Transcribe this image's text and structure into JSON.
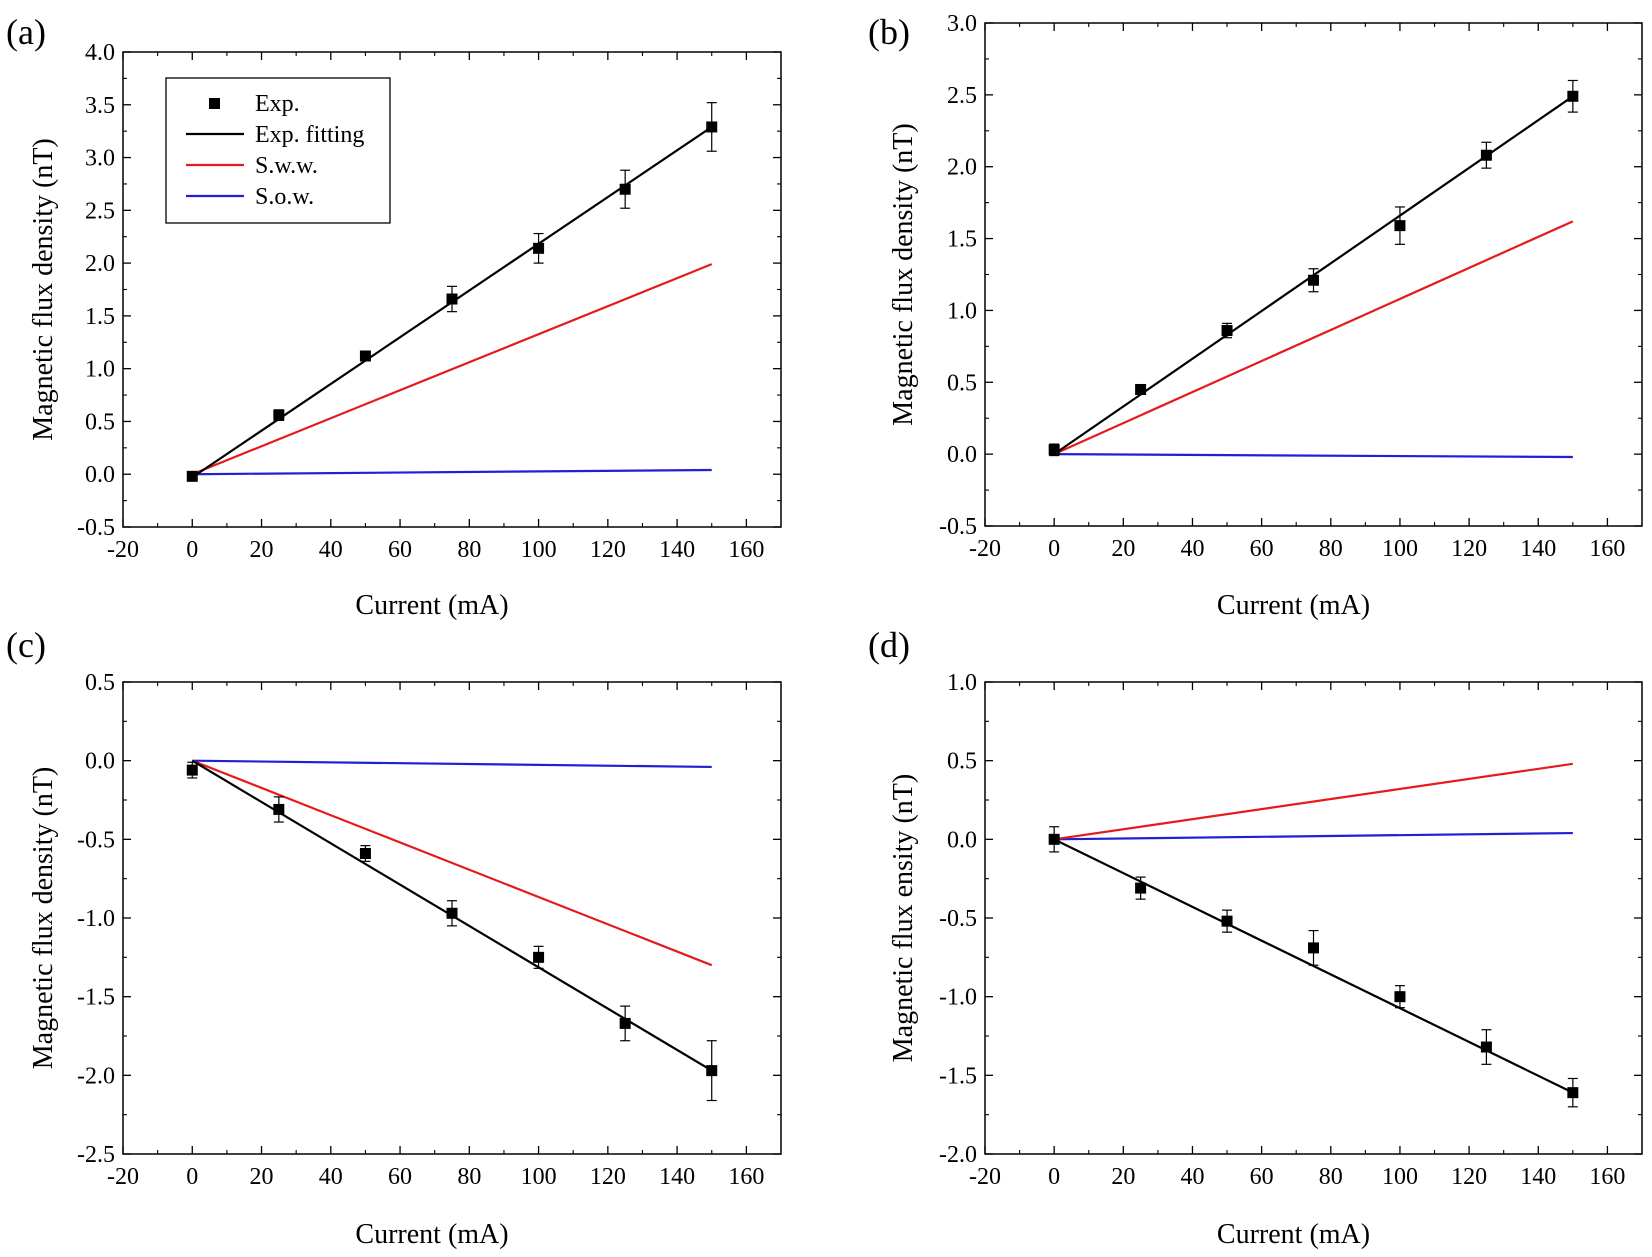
{
  "legend": {
    "entries": [
      {
        "label": "Exp.",
        "kind": "marker",
        "color": "#000000"
      },
      {
        "label": "Exp. fitting",
        "kind": "line",
        "color": "#000000"
      },
      {
        "label": "S.w.w.",
        "kind": "line",
        "color": "#e41a1c"
      },
      {
        "label": "S.o.w.",
        "kind": "line",
        "color": "#1f1fd6"
      }
    ]
  },
  "colors": {
    "exp": "#000000",
    "fit": "#000000",
    "sww": "#e41a1c",
    "sow": "#1f1fd6"
  },
  "chart_data": [
    {
      "panel": "(a)",
      "type": "scatter",
      "xlabel": "Current (mA)",
      "ylabel": "Magnetic flux density (nT)",
      "xlim": [
        -20,
        170
      ],
      "ylim": [
        -0.5,
        4.0
      ],
      "xticks": [
        -20,
        0,
        20,
        40,
        60,
        80,
        100,
        120,
        140,
        160
      ],
      "yticks": [
        "-0.5",
        "0.0",
        "0.5",
        "1.0",
        "1.5",
        "2.0",
        "2.5",
        "3.0",
        "3.5",
        "4.0"
      ],
      "legend_position": "top-left",
      "x": [
        0,
        25,
        50,
        75,
        100,
        125,
        150
      ],
      "exp": [
        -0.02,
        0.56,
        1.12,
        1.66,
        2.14,
        2.7,
        3.29
      ],
      "err": [
        0.03,
        0.05,
        0.03,
        0.12,
        0.14,
        0.18,
        0.23
      ],
      "fit": [
        [
          0,
          -0.03
        ],
        [
          150,
          3.29
        ]
      ],
      "sww": [
        [
          0,
          0.0
        ],
        [
          150,
          1.99
        ]
      ],
      "sow": [
        [
          0,
          0.0
        ],
        [
          150,
          0.04
        ]
      ]
    },
    {
      "panel": "(b)",
      "type": "scatter",
      "xlabel": "Current (mA)",
      "ylabel": "Magnetic flux density (nT)",
      "xlim": [
        -20,
        170
      ],
      "ylim": [
        -0.5,
        3.0
      ],
      "xticks": [
        -20,
        0,
        20,
        40,
        60,
        80,
        100,
        120,
        140,
        160
      ],
      "yticks": [
        "-0.5",
        "0.0",
        "0.5",
        "1.0",
        "1.5",
        "2.0",
        "2.5",
        "3.0"
      ],
      "x": [
        0,
        25,
        50,
        75,
        100,
        125,
        150
      ],
      "exp": [
        0.03,
        0.45,
        0.86,
        1.21,
        1.59,
        2.08,
        2.49
      ],
      "err": [
        0.04,
        0.02,
        0.05,
        0.08,
        0.13,
        0.09,
        0.11
      ],
      "fit": [
        [
          0,
          0.0
        ],
        [
          150,
          2.49
        ]
      ],
      "sww": [
        [
          0,
          0.0
        ],
        [
          150,
          1.62
        ]
      ],
      "sow": [
        [
          0,
          0.0
        ],
        [
          150,
          -0.02
        ]
      ]
    },
    {
      "panel": "(c)",
      "type": "scatter",
      "xlabel": "Current (mA)",
      "ylabel": "Magnetic flux density (nT)",
      "xlim": [
        -20,
        170
      ],
      "ylim": [
        -2.5,
        0.5
      ],
      "xticks": [
        -20,
        0,
        20,
        40,
        60,
        80,
        100,
        120,
        140,
        160
      ],
      "yticks": [
        "-2.5",
        "-2.0",
        "-1.5",
        "-1.0",
        "-0.5",
        "0.0",
        "0.5"
      ],
      "x": [
        0,
        25,
        50,
        75,
        100,
        125,
        150
      ],
      "exp": [
        -0.06,
        -0.31,
        -0.59,
        -0.97,
        -1.25,
        -1.67,
        -1.97
      ],
      "err": [
        0.05,
        0.08,
        0.05,
        0.08,
        0.07,
        0.11,
        0.19
      ],
      "fit": [
        [
          0,
          0.0
        ],
        [
          150,
          -1.97
        ]
      ],
      "sww": [
        [
          0,
          0.0
        ],
        [
          150,
          -1.3
        ]
      ],
      "sow": [
        [
          0,
          0.0
        ],
        [
          150,
          -0.04
        ]
      ]
    },
    {
      "panel": "(d)",
      "type": "scatter",
      "xlabel": "Current (mA)",
      "ylabel": "Magnetic flux ensity (nT)",
      "xlim": [
        -20,
        170
      ],
      "ylim": [
        -2.0,
        1.0
      ],
      "xticks": [
        -20,
        0,
        20,
        40,
        60,
        80,
        100,
        120,
        140,
        160
      ],
      "yticks": [
        "-2.0",
        "-1.5",
        "-1.0",
        "-0.5",
        "0.0",
        "0.5",
        "1.0"
      ],
      "x": [
        0,
        25,
        50,
        75,
        100,
        125,
        150
      ],
      "exp": [
        0.0,
        -0.31,
        -0.52,
        -0.69,
        -1.0,
        -1.32,
        -1.61
      ],
      "err": [
        0.08,
        0.07,
        0.07,
        0.11,
        0.07,
        0.11,
        0.09
      ],
      "fit": [
        [
          0,
          0.0
        ],
        [
          150,
          -1.61
        ]
      ],
      "sww": [
        [
          0,
          0.0
        ],
        [
          150,
          0.48
        ]
      ],
      "sow": [
        [
          0,
          0.0
        ],
        [
          150,
          0.04
        ]
      ]
    }
  ]
}
